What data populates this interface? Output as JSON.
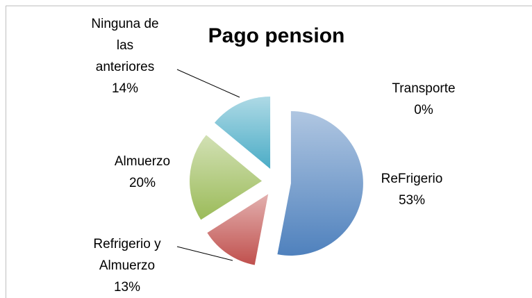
{
  "chart_data": {
    "type": "pie",
    "title": "Pago pension",
    "categories": [
      "ReFrigerio",
      "Refrigerio y Almuerzo",
      "Almuerzo",
      "Ninguna de las anteriores",
      "Transporte"
    ],
    "values": [
      53,
      13,
      20,
      14,
      0
    ],
    "value_labels": [
      "53%",
      "13%",
      "20%",
      "14%",
      "0%"
    ],
    "colors": [
      "#4f81bd",
      "#c0504d",
      "#9bbb59",
      "#4bacc6",
      "#8064a2"
    ]
  }
}
